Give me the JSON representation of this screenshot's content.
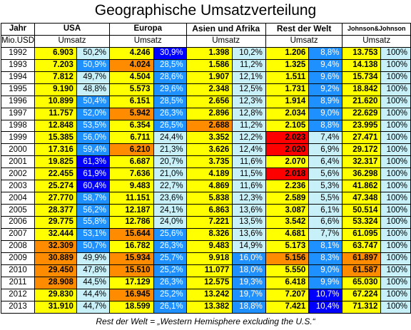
{
  "chart_data": {
    "type": "table",
    "title": "Geographische Umsatzverteilung",
    "header_year": "Jahr",
    "unit_label": "Mio.USD",
    "sub_label": "Umsatz",
    "footnote": "Rest der Welt = „Western Hemisphere excluding the U.S.“",
    "columns": [
      "USA",
      "Europa",
      "Asien und Afrika",
      "Rest der Welt",
      "Johnson&Johnson"
    ],
    "colors": {
      "value_default": "#ffff00",
      "value_high": "#ff8c00",
      "value_rest_high": "#ff0000",
      "pct_default": "#c8f0f8",
      "pct_mid": "#1e90ff",
      "pct_high": "#0000ff"
    },
    "rows": [
      {
        "year": "1992",
        "usa": "6.903",
        "usa_p": "50,2%",
        "eu": "4.246",
        "eu_p": "30,9%",
        "as": "1.398",
        "as_p": "10,2%",
        "rw": "1.206",
        "rw_p": "8,8%",
        "jj": "13.753",
        "jj_p": "100%",
        "c": [
          "y",
          "l",
          "y",
          "B",
          "y",
          "l",
          "y",
          "m",
          "y",
          "l"
        ]
      },
      {
        "year": "1993",
        "usa": "7.203",
        "usa_p": "50,9%",
        "eu": "4.024",
        "eu_p": "28,5%",
        "as": "1.586",
        "as_p": "11,2%",
        "rw": "1.325",
        "rw_p": "9,4%",
        "jj": "14.138",
        "jj_p": "100%",
        "c": [
          "y",
          "m",
          "o",
          "m",
          "y",
          "l",
          "y",
          "m",
          "y",
          "l"
        ]
      },
      {
        "year": "1994",
        "usa": "7.812",
        "usa_p": "49,7%",
        "eu": "4.504",
        "eu_p": "28,6%",
        "as": "1.907",
        "as_p": "12,1%",
        "rw": "1.511",
        "rw_p": "9,6%",
        "jj": "15.734",
        "jj_p": "100%",
        "c": [
          "y",
          "l",
          "y",
          "m",
          "y",
          "l",
          "y",
          "m",
          "y",
          "l"
        ]
      },
      {
        "year": "1995",
        "usa": "9.190",
        "usa_p": "48,8%",
        "eu": "5.573",
        "eu_p": "29,6%",
        "as": "2.348",
        "as_p": "12,5%",
        "rw": "1.731",
        "rw_p": "9,2%",
        "jj": "18.842",
        "jj_p": "100%",
        "c": [
          "y",
          "l",
          "y",
          "m",
          "y",
          "l",
          "y",
          "m",
          "y",
          "l"
        ]
      },
      {
        "year": "1996",
        "usa": "10.899",
        "usa_p": "50,4%",
        "eu": "6.151",
        "eu_p": "28,5%",
        "as": "2.656",
        "as_p": "12,3%",
        "rw": "1.914",
        "rw_p": "8,9%",
        "jj": "21.620",
        "jj_p": "100%",
        "c": [
          "y",
          "m",
          "y",
          "m",
          "y",
          "l",
          "y",
          "m",
          "y",
          "l"
        ]
      },
      {
        "year": "1997",
        "usa": "11.757",
        "usa_p": "52,0%",
        "eu": "5.942",
        "eu_p": "26,3%",
        "as": "2.896",
        "as_p": "12,8%",
        "rw": "2.034",
        "rw_p": "9,0%",
        "jj": "22.629",
        "jj_p": "100%",
        "c": [
          "y",
          "m",
          "o",
          "m",
          "y",
          "l",
          "y",
          "m",
          "y",
          "l"
        ]
      },
      {
        "year": "1998",
        "usa": "12.848",
        "usa_p": "53,5%",
        "eu": "6.354",
        "eu_p": "26,5%",
        "as": "2.688",
        "as_p": "11,2%",
        "rw": "2.105",
        "rw_p": "8,8%",
        "jj": "23.995",
        "jj_p": "100%",
        "c": [
          "y",
          "m",
          "y",
          "m",
          "o",
          "l",
          "y",
          "m",
          "y",
          "l"
        ]
      },
      {
        "year": "1999",
        "usa": "15.385",
        "usa_p": "56,0%",
        "eu": "6.711",
        "eu_p": "24,4%",
        "as": "3.352",
        "as_p": "12,2%",
        "rw": "2.023",
        "rw_p": "7,4%",
        "jj": "27.471",
        "jj_p": "100%",
        "c": [
          "y",
          "m",
          "y",
          "l",
          "y",
          "l",
          "r",
          "l",
          "y",
          "l"
        ]
      },
      {
        "year": "2000",
        "usa": "17.316",
        "usa_p": "59,4%",
        "eu": "6.210",
        "eu_p": "21,3%",
        "as": "3.626",
        "as_p": "12,4%",
        "rw": "2.020",
        "rw_p": "6,9%",
        "jj": "29.172",
        "jj_p": "100%",
        "c": [
          "y",
          "m",
          "o",
          "l",
          "y",
          "l",
          "r",
          "l",
          "y",
          "l"
        ]
      },
      {
        "year": "2001",
        "usa": "19.825",
        "usa_p": "61,3%",
        "eu": "6.687",
        "eu_p": "20,7%",
        "as": "3.735",
        "as_p": "11,6%",
        "rw": "2.070",
        "rw_p": "6,4%",
        "jj": "32.317",
        "jj_p": "100%",
        "c": [
          "y",
          "B",
          "y",
          "l",
          "y",
          "l",
          "y",
          "l",
          "y",
          "l"
        ]
      },
      {
        "year": "2002",
        "usa": "22.455",
        "usa_p": "61,9%",
        "eu": "7.636",
        "eu_p": "21,0%",
        "as": "4.189",
        "as_p": "11,5%",
        "rw": "2.018",
        "rw_p": "5,6%",
        "jj": "36.298",
        "jj_p": "100%",
        "c": [
          "y",
          "B",
          "y",
          "l",
          "y",
          "l",
          "r",
          "l",
          "y",
          "l"
        ]
      },
      {
        "year": "2003",
        "usa": "25.274",
        "usa_p": "60,4%",
        "eu": "9.483",
        "eu_p": "22,7%",
        "as": "4.869",
        "as_p": "11,6%",
        "rw": "2.236",
        "rw_p": "5,3%",
        "jj": "41.862",
        "jj_p": "100%",
        "c": [
          "y",
          "B",
          "y",
          "l",
          "y",
          "l",
          "y",
          "l",
          "y",
          "l"
        ]
      },
      {
        "year": "2004",
        "usa": "27.770",
        "usa_p": "58,7%",
        "eu": "11.151",
        "eu_p": "23,6%",
        "as": "5.838",
        "as_p": "12,3%",
        "rw": "2.589",
        "rw_p": "5,5%",
        "jj": "47.348",
        "jj_p": "100%",
        "c": [
          "y",
          "m",
          "y",
          "l",
          "y",
          "l",
          "y",
          "l",
          "y",
          "l"
        ]
      },
      {
        "year": "2005",
        "usa": "28.377",
        "usa_p": "56,2%",
        "eu": "12.187",
        "eu_p": "24,1%",
        "as": "6.863",
        "as_p": "13,6%",
        "rw": "3.087",
        "rw_p": "6,1%",
        "jj": "50.514",
        "jj_p": "100%",
        "c": [
          "y",
          "m",
          "y",
          "l",
          "y",
          "l",
          "y",
          "l",
          "y",
          "l"
        ]
      },
      {
        "year": "2006",
        "usa": "29.775",
        "usa_p": "55,8%",
        "eu": "12.786",
        "eu_p": "24,0%",
        "as": "7.221",
        "as_p": "13,5%",
        "rw": "3.542",
        "rw_p": "6,6%",
        "jj": "53.324",
        "jj_p": "100%",
        "c": [
          "y",
          "m",
          "y",
          "l",
          "y",
          "l",
          "y",
          "l",
          "y",
          "l"
        ]
      },
      {
        "year": "2007",
        "usa": "32.444",
        "usa_p": "53,1%",
        "eu": "15.644",
        "eu_p": "25,6%",
        "as": "8.326",
        "as_p": "13,6%",
        "rw": "4.681",
        "rw_p": "7,7%",
        "jj": "61.095",
        "jj_p": "100%",
        "c": [
          "y",
          "m",
          "o",
          "m",
          "y",
          "l",
          "y",
          "l",
          "y",
          "l"
        ]
      },
      {
        "year": "2008",
        "usa": "32.309",
        "usa_p": "50,7%",
        "eu": "16.782",
        "eu_p": "26,3%",
        "as": "9.483",
        "as_p": "14,9%",
        "rw": "5.173",
        "rw_p": "8,1%",
        "jj": "63.747",
        "jj_p": "100%",
        "c": [
          "o",
          "m",
          "y",
          "m",
          "y",
          "l",
          "y",
          "m",
          "y",
          "l"
        ]
      },
      {
        "year": "2009",
        "usa": "30.889",
        "usa_p": "49,9%",
        "eu": "15.934",
        "eu_p": "25,7%",
        "as": "9.918",
        "as_p": "16,0%",
        "rw": "5.156",
        "rw_p": "8,3%",
        "jj": "61.897",
        "jj_p": "100%",
        "c": [
          "o",
          "l",
          "o",
          "m",
          "y",
          "m",
          "o",
          "m",
          "o",
          "l"
        ]
      },
      {
        "year": "2010",
        "usa": "29.450",
        "usa_p": "47,8%",
        "eu": "15.510",
        "eu_p": "25,2%",
        "as": "11.077",
        "as_p": "18,0%",
        "rw": "5.550",
        "rw_p": "9,0%",
        "jj": "61.587",
        "jj_p": "100%",
        "c": [
          "o",
          "l",
          "o",
          "m",
          "y",
          "m",
          "y",
          "m",
          "o",
          "l"
        ]
      },
      {
        "year": "2011",
        "usa": "28.908",
        "usa_p": "44,5%",
        "eu": "17.129",
        "eu_p": "26,3%",
        "as": "12.575",
        "as_p": "19,3%",
        "rw": "6.418",
        "rw_p": "9,9%",
        "jj": "65.030",
        "jj_p": "100%",
        "c": [
          "o",
          "l",
          "y",
          "m",
          "y",
          "m",
          "y",
          "m",
          "y",
          "l"
        ]
      },
      {
        "year": "2012",
        "usa": "29.830",
        "usa_p": "44,4%",
        "eu": "16.945",
        "eu_p": "25,2%",
        "as": "13.242",
        "as_p": "19,7%",
        "rw": "7.207",
        "rw_p": "10,7%",
        "jj": "67.224",
        "jj_p": "100%",
        "c": [
          "y",
          "l",
          "o",
          "m",
          "y",
          "m",
          "y",
          "B",
          "y",
          "l"
        ]
      },
      {
        "year": "2013",
        "usa": "31.910",
        "usa_p": "44,7%",
        "eu": "18.599",
        "eu_p": "26,1%",
        "as": "13.382",
        "as_p": "18,8%",
        "rw": "7.421",
        "rw_p": "10,4%",
        "jj": "71.312",
        "jj_p": "100%",
        "c": [
          "y",
          "l",
          "y",
          "m",
          "y",
          "m",
          "y",
          "B",
          "y",
          "l"
        ]
      }
    ]
  }
}
